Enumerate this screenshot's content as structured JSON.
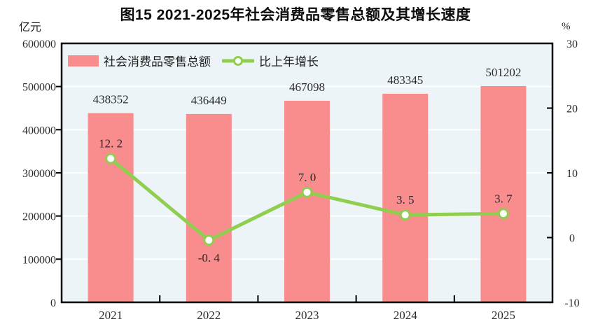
{
  "title": "图15  2021-2025年社会消费品零售总额及其增长速度",
  "legend": {
    "bar_label": "社会消费品零售总额",
    "line_label": "比上年增长"
  },
  "chart_data": {
    "type": "bar",
    "categories": [
      "2021",
      "2022",
      "2023",
      "2024",
      "2025"
    ],
    "series": [
      {
        "name": "社会消费品零售总额",
        "type": "bar",
        "axis": "left",
        "values": [
          438352,
          436449,
          467098,
          483345,
          501202
        ],
        "labels": [
          "438352",
          "436449",
          "467098",
          "483345",
          "501202"
        ],
        "color": "#F98C8C"
      },
      {
        "name": "比上年增长",
        "type": "line",
        "axis": "right",
        "values": [
          12.2,
          -0.4,
          7.0,
          3.5,
          3.7
        ],
        "labels": [
          "12. 2",
          "-0. 4",
          "7. 0",
          "3. 5",
          "3. 7"
        ],
        "label_positions": [
          "above",
          "below",
          "above",
          "above",
          "above"
        ],
        "color": "#8FCE4F",
        "marker": "circle-white-fill"
      }
    ],
    "left_axis": {
      "unit": "亿元",
      "min": 0,
      "max": 600000,
      "tick_interval": 100000,
      "tick_labels": [
        "0",
        "100000",
        "200000",
        "300000",
        "400000",
        "500000",
        "600000"
      ]
    },
    "right_axis": {
      "unit": "%",
      "min": -10,
      "max": 30,
      "tick_interval": 10,
      "tick_labels": [
        "-10",
        "0",
        "10",
        "20",
        "30"
      ]
    },
    "grid": true,
    "legend_position": "top-left-inside",
    "colors": {
      "plot_bg": "#ECF4F8",
      "grid_line": "#FFFFFF",
      "plot_border": "#000000",
      "text": "#2B2B2B"
    }
  }
}
